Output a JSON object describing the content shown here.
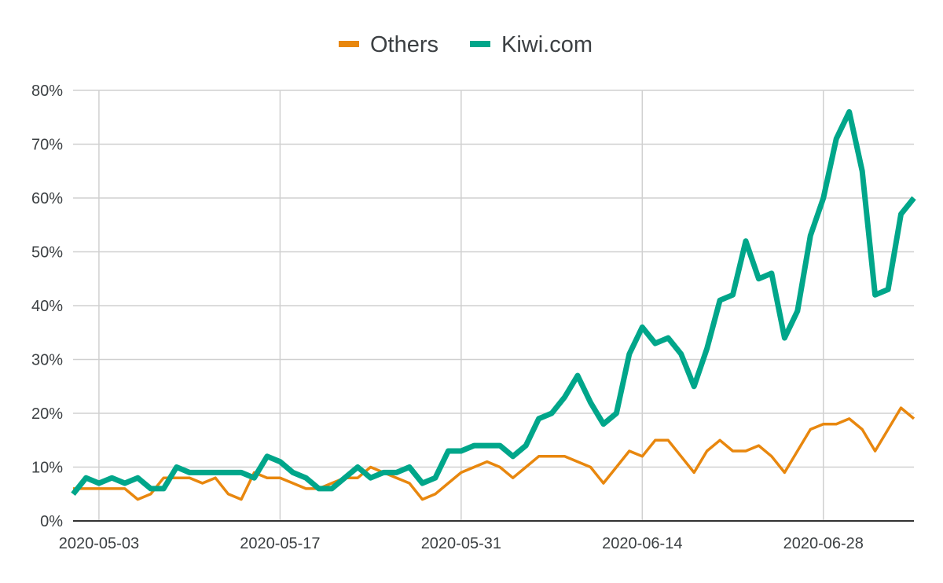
{
  "chart_data": {
    "type": "line",
    "title": "",
    "xlabel": "",
    "ylabel": "",
    "legend_position": "top",
    "grid": true,
    "x_start": "2020-05-01",
    "x_end": "2020-07-05",
    "ylim": [
      0,
      80
    ],
    "y_ticks": [
      0,
      10,
      20,
      30,
      40,
      50,
      60,
      70,
      80
    ],
    "y_tick_labels": [
      "0%",
      "10%",
      "20%",
      "30%",
      "40%",
      "50%",
      "60%",
      "70%",
      "80%"
    ],
    "x_ticks": [
      "2020-05-03",
      "2020-05-17",
      "2020-05-31",
      "2020-06-14",
      "2020-06-28"
    ],
    "x_tick_labels": [
      "2020-05-03",
      "2020-05-17",
      "2020-05-31",
      "2020-06-14",
      "2020-06-28"
    ],
    "dates": [
      "2020-05-01",
      "2020-05-02",
      "2020-05-03",
      "2020-05-04",
      "2020-05-05",
      "2020-05-06",
      "2020-05-07",
      "2020-05-08",
      "2020-05-09",
      "2020-05-10",
      "2020-05-11",
      "2020-05-12",
      "2020-05-13",
      "2020-05-14",
      "2020-05-15",
      "2020-05-16",
      "2020-05-17",
      "2020-05-18",
      "2020-05-19",
      "2020-05-20",
      "2020-05-21",
      "2020-05-22",
      "2020-05-23",
      "2020-05-24",
      "2020-05-25",
      "2020-05-26",
      "2020-05-27",
      "2020-05-28",
      "2020-05-29",
      "2020-05-30",
      "2020-05-31",
      "2020-06-01",
      "2020-06-02",
      "2020-06-03",
      "2020-06-04",
      "2020-06-05",
      "2020-06-06",
      "2020-06-07",
      "2020-06-08",
      "2020-06-09",
      "2020-06-10",
      "2020-06-11",
      "2020-06-12",
      "2020-06-13",
      "2020-06-14",
      "2020-06-15",
      "2020-06-16",
      "2020-06-17",
      "2020-06-18",
      "2020-06-19",
      "2020-06-20",
      "2020-06-21",
      "2020-06-22",
      "2020-06-23",
      "2020-06-24",
      "2020-06-25",
      "2020-06-26",
      "2020-06-27",
      "2020-06-28",
      "2020-06-29",
      "2020-06-30",
      "2020-07-01",
      "2020-07-02",
      "2020-07-03",
      "2020-07-04",
      "2020-07-05"
    ],
    "series": [
      {
        "name": "Others",
        "color": "#e8870e",
        "values": [
          6,
          6,
          6,
          6,
          6,
          4,
          5,
          8,
          8,
          8,
          7,
          8,
          5,
          4,
          9,
          8,
          8,
          7,
          6,
          6,
          7,
          8,
          8,
          10,
          9,
          8,
          7,
          4,
          5,
          7,
          9,
          10,
          11,
          10,
          8,
          10,
          12,
          12,
          12,
          11,
          10,
          7,
          10,
          13,
          12,
          15,
          15,
          12,
          9,
          13,
          15,
          13,
          13,
          14,
          12,
          9,
          13,
          17,
          18,
          18,
          19,
          17,
          13,
          17,
          21,
          19
        ]
      },
      {
        "name": "Kiwi.com",
        "color": "#00a68a",
        "values": [
          5,
          8,
          7,
          8,
          7,
          8,
          6,
          6,
          10,
          9,
          9,
          9,
          9,
          9,
          8,
          12,
          11,
          9,
          8,
          6,
          6,
          8,
          10,
          8,
          9,
          9,
          10,
          7,
          8,
          13,
          13,
          14,
          14,
          14,
          12,
          14,
          19,
          20,
          23,
          27,
          22,
          18,
          20,
          31,
          36,
          33,
          34,
          31,
          25,
          32,
          41,
          42,
          52,
          45,
          46,
          34,
          39,
          53,
          60,
          71,
          76,
          65,
          42,
          43,
          57,
          60
        ]
      }
    ]
  }
}
